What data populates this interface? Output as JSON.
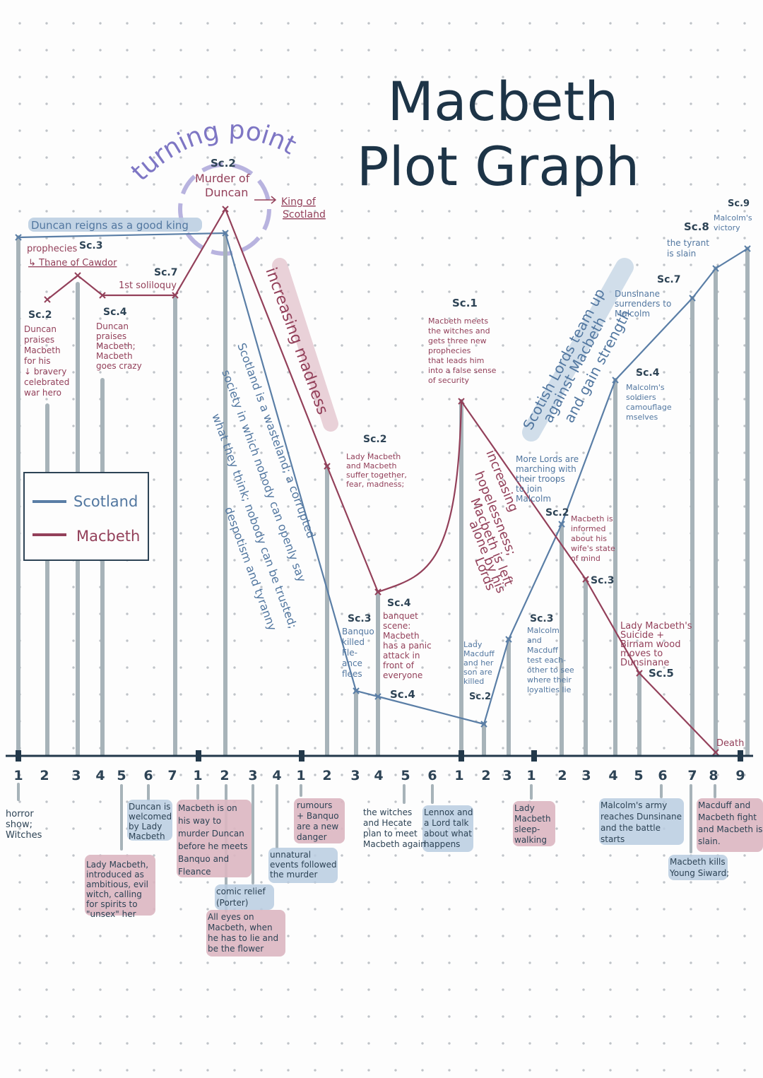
{
  "title": {
    "line1": "Macbeth",
    "line2": "Plot Graph"
  },
  "turning_point": "turning point",
  "legend": {
    "scotland": "Scotland",
    "macbeth": "Macbeth"
  },
  "colors": {
    "scotland": "#5a7ea6",
    "macbeth": "#93405a",
    "bar": "#a7b3b9",
    "axis": "#22384a"
  },
  "top_labels": {
    "duncan_reigns": "Duncan reigns as a good king",
    "murder_sc": "Sc.2",
    "murder_1": "Murder of",
    "murder_2": "Duncan",
    "king_1": "King of",
    "king_2": "Scotland",
    "prophecies_sc": "Sc.3",
    "prophecies_1": "prophecies",
    "prophecies_2": "↳ Thane of Cawdor",
    "soliloquy_sc": "Sc.7",
    "soliloquy": "1st soliloquy",
    "a1s2_sc": "Sc.2",
    "a1s2": [
      "Duncan",
      "praises",
      "Macbeth",
      "for his",
      "↓ bravery",
      "celebrated",
      "war hero"
    ],
    "a1s4_sc": "Sc.4",
    "a1s4": [
      "Duncan",
      "praises",
      "Macbeth;",
      "Macbeth",
      "goes crazy"
    ]
  },
  "middle_labels": {
    "increasing_madness": "increasing madness",
    "wasteland_1": "Scotland is a wasteland; a corrupted",
    "wasteland_2": "society in which nobody can openly say",
    "wasteland_3": "what they think; nobody can be trusted;",
    "wasteland_4": "despotism and tyranny",
    "a3s2_sc": "Sc.2",
    "a3s2": [
      "Lady Macbeth",
      "and Macbeth",
      "suffer together,",
      "fear, madness;"
    ],
    "a3s3_sc": "Sc.3",
    "a3s3": [
      "Banquo",
      "killed",
      "Fle-",
      "ance",
      "flees"
    ],
    "a3s4_sc": "Sc.4",
    "a3s4": [
      "banquet",
      "scene:",
      "Macbeth",
      "has a panic",
      "attack in",
      "front of",
      "everyone"
    ],
    "a3s4_low_sc": "Sc.4",
    "a4s1_sc": "Sc.1",
    "a4s1": [
      "Macbeth meets",
      "the witches and",
      "gets three new",
      "prophecies",
      "that leads him",
      "into a false sense",
      "of security"
    ],
    "hopelessness_1": "increasing",
    "hopelessness_2": "hopelessness;",
    "hopelessness_3": "Macbeth is left",
    "hopelessness_4": "alone by his",
    "hopelessness_5": "Lords",
    "a4s2": [
      "Lady",
      "Macduff",
      "and her",
      "son are",
      "killed"
    ],
    "a4s2_sc": "Sc.2",
    "a4s3_sc": "Sc.3",
    "a4s3": [
      "Malcolm",
      "and",
      "Macduff",
      "test each-",
      "other to see",
      "where their",
      "loyalties lie"
    ]
  },
  "right_labels": {
    "lords_1": "Scotish Lords team up",
    "lords_2": "against Macbeth",
    "lords_3": "and gain strength",
    "more_lords": [
      "More Lords are",
      "marching with",
      "their troops",
      "to join",
      "Malcolm"
    ],
    "a5s2_sc": "Sc.2",
    "a5s3": [
      "Macbeth is",
      "informed",
      "about his",
      "wife's state",
      "of mind"
    ],
    "a5s3_sc": "Sc.3",
    "a5s4_sc": "Sc.4",
    "a5s4": [
      "Malcolm's",
      "soldiers",
      "camouflage",
      "mselves"
    ],
    "a5s5": [
      "Lady Macbeth's",
      "Suicide +",
      "Birnam wood",
      "moves to",
      "Dunsinane"
    ],
    "a5s5_sc": "Sc.5",
    "a5s7_sc": "Sc.7",
    "a5s7": [
      "Dunsinane",
      "surrenders to",
      "Malcolm"
    ],
    "a5s8_sc": "Sc.8",
    "a5s8": [
      "the tyrant",
      "is slain"
    ],
    "a5s9_sc": "Sc.9",
    "a5s9": [
      "Malcolm's",
      "victory"
    ],
    "death": "Death"
  },
  "axis_labels": [
    "1",
    "2",
    "3",
    "4",
    "5",
    "6",
    "7",
    "1",
    "2",
    "3",
    "4",
    "1",
    "2",
    "3",
    "4",
    "5",
    "6",
    "1",
    "2",
    "3",
    "1",
    "2",
    "3",
    "4",
    "5",
    "6",
    "7",
    "8",
    "9"
  ],
  "bottom_notes": {
    "horror": [
      "horror",
      "show;",
      "Witches"
    ],
    "lady_intro": [
      "Lady Macbeth,",
      "introduced as",
      "ambitious, evil",
      "witch, calling",
      "for spirits to",
      "\"unsex\" her"
    ],
    "welcomed": [
      "Duncan is",
      "welcomed",
      "by Lady",
      "Macbeth"
    ],
    "on_way": [
      "Macbeth is on",
      "his way to",
      "murder Duncan",
      "before he meets",
      "Banquo and",
      "Fleance"
    ],
    "comic": [
      "comic relief",
      "(Porter)"
    ],
    "all_eyes": [
      "All eyes on",
      "Macbeth, when",
      "he has to lie and",
      "be the flower"
    ],
    "unnatural": [
      "unnatural",
      "events followed",
      "the murder"
    ],
    "rumours": [
      "rumours",
      "+ Banquo",
      "are a new",
      "danger"
    ],
    "witches_hecate": [
      "the witches",
      "and Hecate",
      "plan to meet",
      "Macbeth again"
    ],
    "lennox": [
      "Lennox and",
      "a Lord talk",
      "about what",
      "happens"
    ],
    "sleepwalk": [
      "Lady",
      "Macbeth",
      "sleep-",
      "walking"
    ],
    "malcolm_army": [
      "Malcolm's army",
      "reaches Dunsinane",
      "and the battle",
      "starts"
    ],
    "young_siward": [
      "Macbeth kills",
      "Young Siward;"
    ],
    "macduff_fight": [
      "Macduff and",
      "Macbeth fight",
      "and Macbeth is",
      "slain."
    ]
  }
}
